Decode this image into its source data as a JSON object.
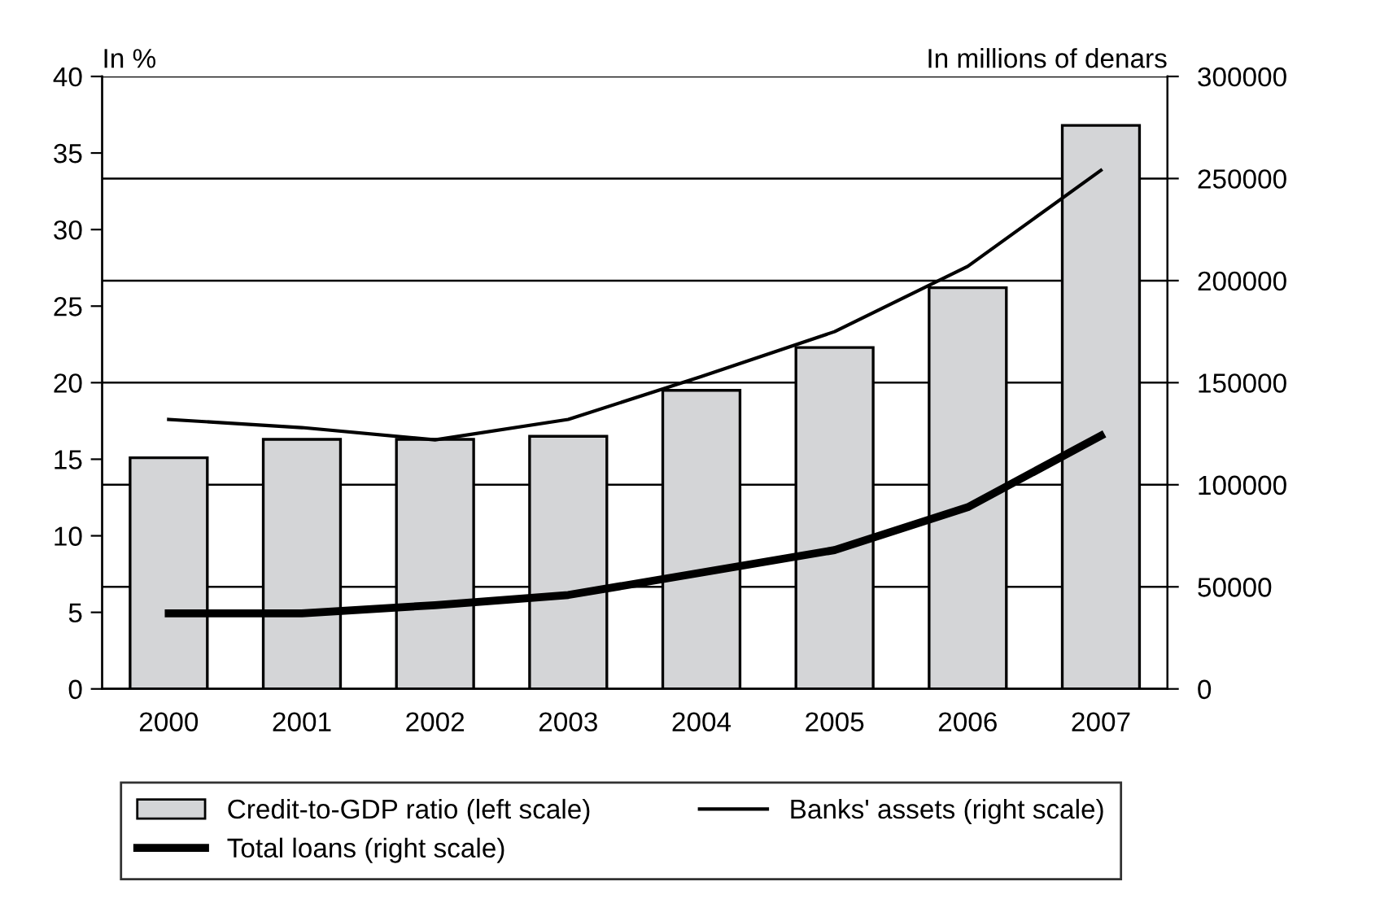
{
  "chart_data": {
    "type": "bar",
    "ylabel": "In %",
    "y2label": "In millions of denars",
    "categories": [
      "2000",
      "2001",
      "2002",
      "2003",
      "2004",
      "2005",
      "2006",
      "2007"
    ],
    "series": [
      {
        "name": "Credit-to-GDP ratio (left scale)",
        "color": "#d4d5d7",
        "values": [
          15.1,
          16.3,
          16.3,
          16.5,
          19.5,
          22.3,
          26.2,
          36.8
        ]
      },
      {
        "name": "Banks' assets (right scale)",
        "type": "line",
        "axis": "y2",
        "color": "#000000",
        "values": [
          132000,
          128000,
          122000,
          132000,
          153000,
          175000,
          207000,
          254000
        ]
      },
      {
        "name": "Total loans (right scale)",
        "type": "line",
        "axis": "y2",
        "color": "#000000",
        "values": [
          37000,
          37000,
          41000,
          46000,
          57000,
          68000,
          89000,
          124000
        ]
      }
    ],
    "ylim": [
      0,
      40
    ],
    "yticks": [
      0,
      5,
      10,
      15,
      20,
      25,
      30,
      35,
      40
    ],
    "y2lim": [
      0,
      300000
    ],
    "y2ticks": [
      0,
      50000,
      100000,
      150000,
      200000,
      250000,
      300000
    ],
    "grid": true,
    "legend": "bottom",
    "marker": "none",
    "line_style": "solid"
  }
}
